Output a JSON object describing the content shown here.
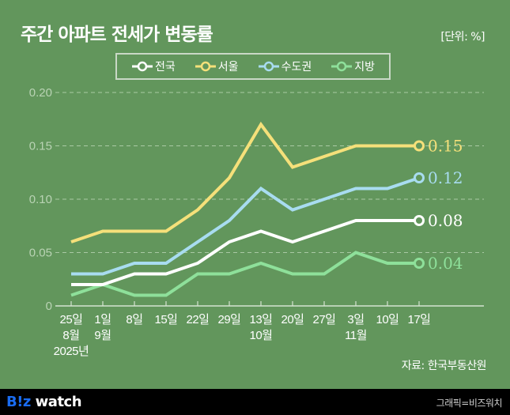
{
  "header": {
    "title": "주간 아파트 전세가 변동률",
    "unit": "[단위: %]"
  },
  "source": "자료: 한국부동산원",
  "footer": {
    "logo_b": "B!z",
    "logo_w": " watch",
    "credit": "그래픽=비즈워치"
  },
  "chart_data": {
    "type": "line",
    "title": "주간 아파트 전세가 변동률",
    "xlabel": "",
    "ylabel": "",
    "ylim": [
      0,
      0.2
    ],
    "yticks": [
      "0",
      "0.05",
      "0.10",
      "0.15",
      "0.20"
    ],
    "ytick_values": [
      0,
      0.05,
      0.1,
      0.15,
      0.2
    ],
    "grid": true,
    "legend_position": "top-center",
    "categories": [
      "25일",
      "1일",
      "8일",
      "15일",
      "22일",
      "29일",
      "13일",
      "20일",
      "27일",
      "3일",
      "10일",
      "17일"
    ],
    "category_sub": [
      "8월",
      "9월",
      "",
      "",
      "",
      "",
      "10월",
      "",
      "",
      "11월",
      "",
      ""
    ],
    "year_label": "2025년",
    "series": [
      {
        "name": "전국",
        "color": "#ffffff",
        "values": [
          0.02,
          0.02,
          0.03,
          0.03,
          0.04,
          0.06,
          0.07,
          0.06,
          0.07,
          0.08,
          0.08,
          0.08
        ],
        "end_label": "0.08"
      },
      {
        "name": "서울",
        "color": "#f5e07a",
        "values": [
          0.06,
          0.07,
          0.07,
          0.07,
          0.09,
          0.12,
          0.17,
          0.13,
          0.14,
          0.15,
          0.15,
          0.15
        ],
        "end_label": "0.15"
      },
      {
        "name": "수도권",
        "color": "#a8dcf0",
        "values": [
          0.03,
          0.03,
          0.04,
          0.04,
          0.06,
          0.08,
          0.11,
          0.09,
          0.1,
          0.11,
          0.11,
          0.12
        ],
        "end_label": "0.12"
      },
      {
        "name": "지방",
        "color": "#8ee09a",
        "values": [
          0.01,
          0.02,
          0.01,
          0.01,
          0.03,
          0.03,
          0.04,
          0.03,
          0.03,
          0.05,
          0.04,
          0.04
        ],
        "end_label": "0.04"
      }
    ]
  }
}
